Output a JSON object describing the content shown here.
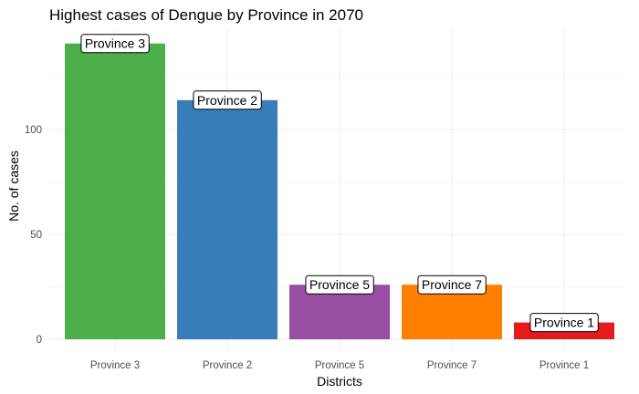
{
  "chart_data": {
    "type": "bar",
    "title": "Highest cases of Dengue by Province in 2070",
    "xlabel": "Districts",
    "ylabel": "No. of cases",
    "categories": [
      "Province 3",
      "Province 2",
      "Province 5",
      "Province 7",
      "Province 1"
    ],
    "values": [
      141,
      114,
      26,
      26,
      8
    ],
    "data_labels": [
      "Province 3",
      "Province 2",
      "Province 5",
      "Province 7",
      "Province 1"
    ],
    "colors": [
      "#4daf4a",
      "#377eb8",
      "#984ea3",
      "#ff7f00",
      "#e41a1c"
    ],
    "yticks": [
      0,
      50,
      100
    ],
    "ylim": [
      0,
      148
    ],
    "grid": true,
    "legend": "none"
  }
}
